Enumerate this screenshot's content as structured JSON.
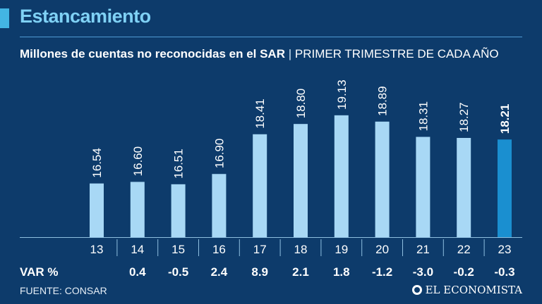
{
  "header": {
    "title": "Estancamiento",
    "subtitle_bold": "Millones de cuentas no reconocidas en el SAR",
    "subtitle_sep": "|",
    "subtitle_thin": "PRIMER TRIMESTRE DE CADA AÑO"
  },
  "var_label": "VAR %",
  "source": "FUENTE: CONSAR",
  "brand": "EL ECONOMISTA",
  "colors": {
    "background": "#0d3b6b",
    "bar": "#a8d8f5",
    "bar_highlight": "#1a8fd0",
    "title": "#7fd1f5",
    "axis": "#8fbfe0"
  },
  "chart_data": {
    "type": "bar",
    "title": "Millones de cuentas no reconocidas en el SAR",
    "subtitle": "PRIMER TRIMESTRE DE CADA AÑO",
    "categories": [
      "13",
      "14",
      "15",
      "16",
      "17",
      "18",
      "19",
      "20",
      "21",
      "22",
      "23"
    ],
    "values": [
      16.54,
      16.6,
      16.51,
      16.9,
      18.41,
      18.8,
      19.13,
      18.89,
      18.31,
      18.27,
      18.21
    ],
    "value_labels": [
      "16.54",
      "16.60",
      "16.51",
      "16.90",
      "18.41",
      "18.80",
      "19.13",
      "18.89",
      "18.31",
      "18.27",
      "18.21"
    ],
    "var_pct": [
      "",
      "0.4",
      "-0.5",
      "2.4",
      "8.9",
      "2.1",
      "1.8",
      "-1.2",
      "-3.0",
      "-0.2",
      "-0.3"
    ],
    "highlight_index": 10,
    "xlabel": "",
    "ylabel": "",
    "ylim": [
      14.5,
      19.5
    ],
    "grid": false
  }
}
